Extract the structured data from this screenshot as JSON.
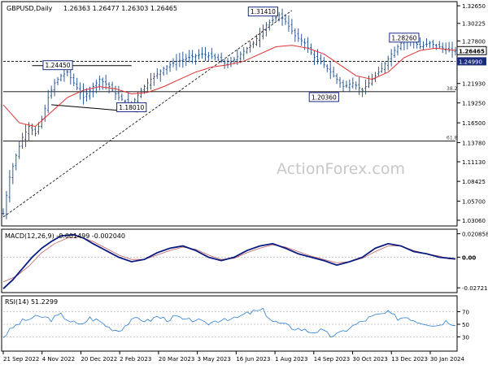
{
  "header": {
    "symbol": "GBPUSD,Daily",
    "ohlc": "1.26363 1.26477 1.26303 1.26465"
  },
  "watermark": "ActionForex.com",
  "colors": {
    "price": "#1a4a8a",
    "ma": "#e03030",
    "macd": "#0a1a80",
    "signal": "#c06060",
    "rsi": "#2e7fd0",
    "label_border": "#1a2a80",
    "grid": "#999999"
  },
  "chart_data": [
    {
      "type": "line",
      "name": "price",
      "ylim": [
        1.025,
        1.33
      ],
      "y_ticks": [
        "1.32650",
        "1.30225",
        "1.27800",
        "1.24950",
        "1.21930",
        "1.19250",
        "1.16500",
        "1.13780",
        "1.11130",
        "1.08425",
        "1.05700",
        "1.03060"
      ],
      "x_ticks": [
        "21 Sep 2022",
        "4 Nov 2022",
        "20 Dec 2022",
        "2 Feb 2023",
        "20 Mar 2023",
        "3 May 2023",
        "16 Jun 2023",
        "1 Aug 2023",
        "14 Sep 2023",
        "30 Oct 2023",
        "13 Dec 2023",
        "30 Jan 2024"
      ],
      "close_points": [
        [
          0,
          1.04
        ],
        [
          2,
          1.09
        ],
        [
          4,
          1.12
        ],
        [
          6,
          1.145
        ],
        [
          8,
          1.16
        ],
        [
          10,
          1.15
        ],
        [
          12,
          1.17
        ],
        [
          14,
          1.2
        ],
        [
          16,
          1.22
        ],
        [
          18,
          1.23
        ],
        [
          20,
          1.235
        ],
        [
          22,
          1.22
        ],
        [
          25,
          1.2
        ],
        [
          28,
          1.215
        ],
        [
          30,
          1.225
        ],
        [
          33,
          1.215
        ],
        [
          36,
          1.2
        ],
        [
          40,
          1.19
        ],
        [
          43,
          1.21
        ],
        [
          46,
          1.225
        ],
        [
          50,
          1.24
        ],
        [
          54,
          1.25
        ],
        [
          58,
          1.255
        ],
        [
          62,
          1.26
        ],
        [
          66,
          1.255
        ],
        [
          70,
          1.245
        ],
        [
          74,
          1.26
        ],
        [
          78,
          1.275
        ],
        [
          82,
          1.3
        ],
        [
          86,
          1.314
        ],
        [
          88,
          1.305
        ],
        [
          91,
          1.285
        ],
        [
          94,
          1.275
        ],
        [
          97,
          1.255
        ],
        [
          100,
          1.245
        ],
        [
          103,
          1.23
        ],
        [
          106,
          1.215
        ],
        [
          109,
          1.22
        ],
        [
          112,
          1.21
        ],
        [
          115,
          1.225
        ],
        [
          118,
          1.24
        ],
        [
          121,
          1.26
        ],
        [
          124,
          1.275
        ],
        [
          127,
          1.28
        ],
        [
          130,
          1.27
        ],
        [
          133,
          1.275
        ],
        [
          136,
          1.27
        ],
        [
          139,
          1.265
        ],
        [
          141,
          1.265
        ]
      ],
      "moving_average": [
        [
          0,
          1.19
        ],
        [
          5,
          1.165
        ],
        [
          10,
          1.16
        ],
        [
          15,
          1.18
        ],
        [
          20,
          1.2
        ],
        [
          25,
          1.21
        ],
        [
          30,
          1.215
        ],
        [
          35,
          1.212
        ],
        [
          40,
          1.205
        ],
        [
          45,
          1.207
        ],
        [
          50,
          1.215
        ],
        [
          55,
          1.225
        ],
        [
          60,
          1.235
        ],
        [
          65,
          1.242
        ],
        [
          70,
          1.245
        ],
        [
          75,
          1.25
        ],
        [
          80,
          1.26
        ],
        [
          85,
          1.27
        ],
        [
          90,
          1.272
        ],
        [
          95,
          1.268
        ],
        [
          100,
          1.26
        ],
        [
          105,
          1.245
        ],
        [
          110,
          1.23
        ],
        [
          115,
          1.225
        ],
        [
          120,
          1.235
        ],
        [
          125,
          1.255
        ],
        [
          130,
          1.265
        ],
        [
          135,
          1.268
        ],
        [
          141,
          1.265
        ]
      ],
      "support_line": [
        [
          9,
          1.244
        ],
        [
          40,
          1.244
        ]
      ],
      "channel_line": [
        [
          15,
          1.19
        ],
        [
          42,
          1.18
        ]
      ],
      "trend_line": [
        [
          0,
          1.035
        ],
        [
          90,
          1.32
        ]
      ],
      "fib_levels": [
        {
          "label": "38.2",
          "value": 1.208
        },
        {
          "label": "61.8",
          "value": 1.14
        }
      ],
      "horizontal_level": 1.2499,
      "annotations": [
        {
          "text": "1.31410",
          "x": 81,
          "y": 1.318
        },
        {
          "text": "1.28260",
          "x": 125,
          "y": 1.282
        },
        {
          "text": "1.24450",
          "x": 17,
          "y": 1.244
        },
        {
          "text": "1.18010",
          "x": 40,
          "y": 1.186
        },
        {
          "text": "1.20360",
          "x": 100,
          "y": 1.2
        }
      ],
      "last_price": "1.26465",
      "level_label": "1.24990"
    },
    {
      "type": "line",
      "name": "macd",
      "label": "MACD(12,26,9) -0.001499 -0.002040",
      "ylim": [
        -0.03,
        0.022
      ],
      "y_ticks": [
        "0.020858",
        "0.00",
        "-0.027213"
      ],
      "macd": [
        [
          0,
          -0.028
        ],
        [
          3,
          -0.02
        ],
        [
          6,
          -0.01
        ],
        [
          9,
          0.0
        ],
        [
          12,
          0.008
        ],
        [
          15,
          0.014
        ],
        [
          18,
          0.019
        ],
        [
          22,
          0.02
        ],
        [
          25,
          0.017
        ],
        [
          28,
          0.012
        ],
        [
          32,
          0.006
        ],
        [
          36,
          0.0
        ],
        [
          40,
          -0.004
        ],
        [
          44,
          -0.002
        ],
        [
          48,
          0.004
        ],
        [
          52,
          0.008
        ],
        [
          56,
          0.01
        ],
        [
          60,
          0.006
        ],
        [
          64,
          0.0
        ],
        [
          68,
          -0.003
        ],
        [
          72,
          0.0
        ],
        [
          76,
          0.006
        ],
        [
          80,
          0.01
        ],
        [
          84,
          0.012
        ],
        [
          88,
          0.008
        ],
        [
          92,
          0.003
        ],
        [
          96,
          0.0
        ],
        [
          100,
          -0.003
        ],
        [
          104,
          -0.007
        ],
        [
          108,
          -0.004
        ],
        [
          112,
          0.0
        ],
        [
          116,
          0.008
        ],
        [
          120,
          0.012
        ],
        [
          124,
          0.01
        ],
        [
          128,
          0.005
        ],
        [
          132,
          0.003
        ],
        [
          136,
          0.0
        ],
        [
          139,
          -0.001
        ],
        [
          141,
          -0.0015
        ]
      ],
      "signal": [
        [
          0,
          -0.022
        ],
        [
          4,
          -0.017
        ],
        [
          8,
          -0.008
        ],
        [
          12,
          0.004
        ],
        [
          16,
          0.012
        ],
        [
          20,
          0.017
        ],
        [
          24,
          0.018
        ],
        [
          28,
          0.014
        ],
        [
          32,
          0.008
        ],
        [
          36,
          0.002
        ],
        [
          40,
          -0.002
        ],
        [
          44,
          -0.002
        ],
        [
          48,
          0.002
        ],
        [
          52,
          0.006
        ],
        [
          56,
          0.009
        ],
        [
          60,
          0.007
        ],
        [
          64,
          0.002
        ],
        [
          68,
          -0.002
        ],
        [
          72,
          -0.001
        ],
        [
          76,
          0.004
        ],
        [
          80,
          0.008
        ],
        [
          84,
          0.011
        ],
        [
          88,
          0.009
        ],
        [
          92,
          0.005
        ],
        [
          96,
          0.001
        ],
        [
          100,
          -0.002
        ],
        [
          104,
          -0.005
        ],
        [
          108,
          -0.004
        ],
        [
          112,
          -0.001
        ],
        [
          116,
          0.005
        ],
        [
          120,
          0.01
        ],
        [
          124,
          0.01
        ],
        [
          128,
          0.006
        ],
        [
          132,
          0.003
        ],
        [
          136,
          0.001
        ],
        [
          139,
          -0.0015
        ],
        [
          141,
          -0.002
        ]
      ]
    },
    {
      "type": "line",
      "name": "rsi",
      "label": "RSI(14) 51.2299",
      "ylim": [
        10,
        90
      ],
      "y_ticks": [
        "70",
        "50",
        "30"
      ],
      "values": [
        [
          0,
          30
        ],
        [
          3,
          45
        ],
        [
          6,
          55
        ],
        [
          9,
          60
        ],
        [
          12,
          62
        ],
        [
          15,
          58
        ],
        [
          18,
          65
        ],
        [
          21,
          55
        ],
        [
          24,
          48
        ],
        [
          27,
          60
        ],
        [
          30,
          55
        ],
        [
          33,
          45
        ],
        [
          36,
          40
        ],
        [
          39,
          52
        ],
        [
          42,
          60
        ],
        [
          45,
          55
        ],
        [
          48,
          62
        ],
        [
          51,
          58
        ],
        [
          54,
          62
        ],
        [
          57,
          55
        ],
        [
          60,
          58
        ],
        [
          63,
          50
        ],
        [
          66,
          55
        ],
        [
          69,
          60
        ],
        [
          72,
          58
        ],
        [
          75,
          65
        ],
        [
          78,
          70
        ],
        [
          81,
          72
        ],
        [
          84,
          55
        ],
        [
          87,
          50
        ],
        [
          90,
          45
        ],
        [
          93,
          42
        ],
        [
          96,
          38
        ],
        [
          99,
          40
        ],
        [
          102,
          32
        ],
        [
          105,
          35
        ],
        [
          108,
          45
        ],
        [
          111,
          52
        ],
        [
          114,
          60
        ],
        [
          117,
          65
        ],
        [
          120,
          68
        ],
        [
          123,
          60
        ],
        [
          126,
          62
        ],
        [
          129,
          55
        ],
        [
          132,
          52
        ],
        [
          135,
          48
        ],
        [
          138,
          55
        ],
        [
          141,
          51
        ]
      ]
    }
  ]
}
